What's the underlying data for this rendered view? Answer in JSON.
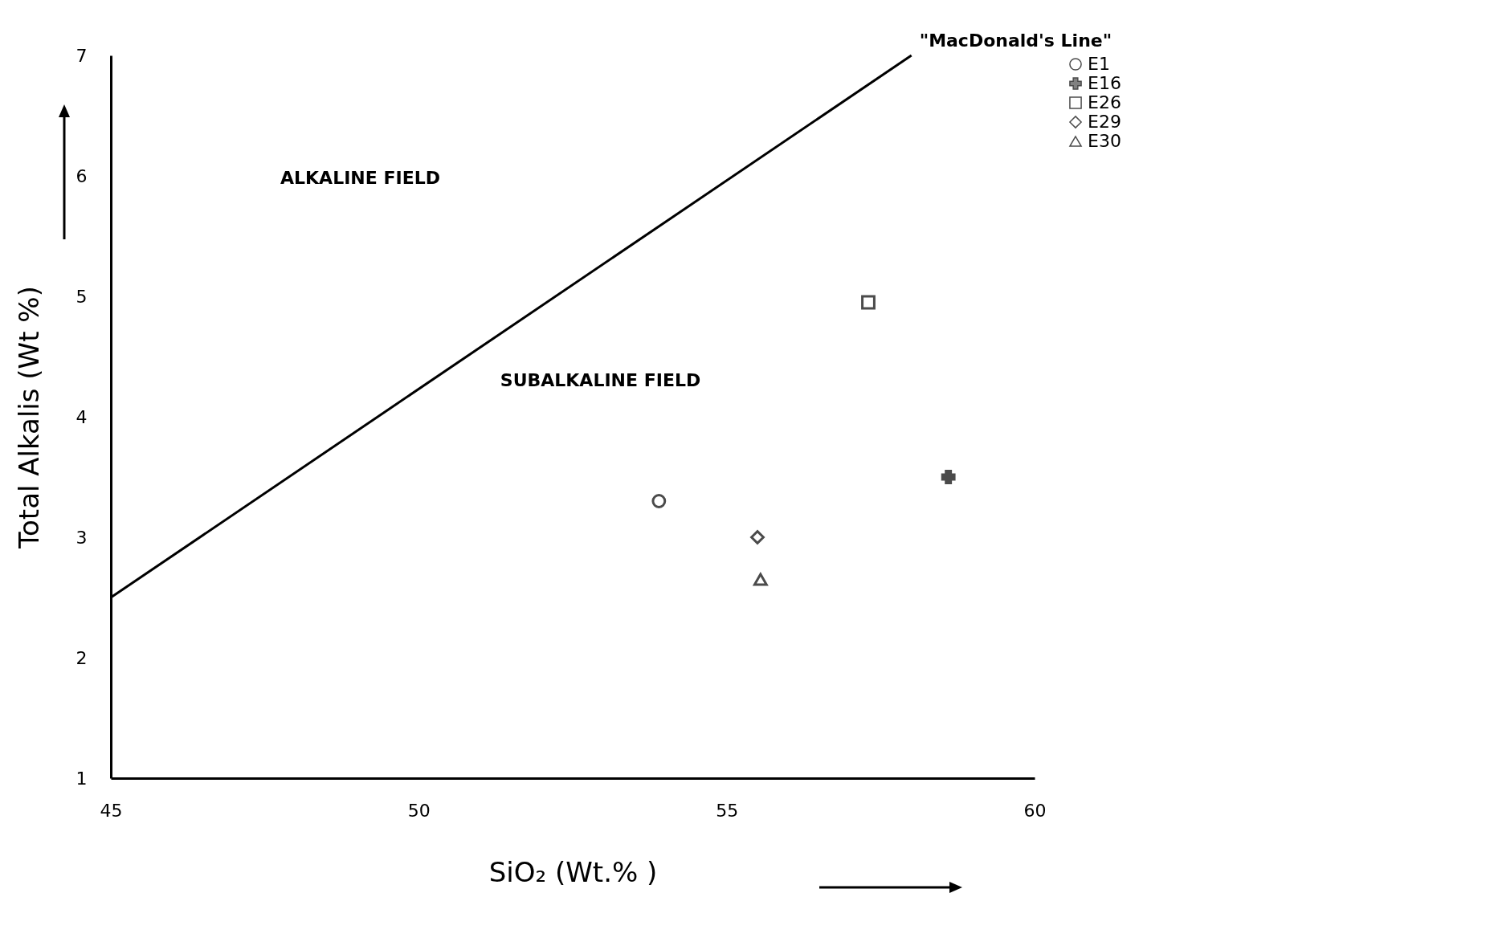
{
  "chart_data": {
    "type": "scatter",
    "xlabel": "SiO₂ (Wt.% )",
    "ylabel": "Total Alkalis (Wt %)",
    "xlim": [
      45,
      60
    ],
    "xticks": [
      45,
      50,
      55,
      60
    ],
    "ylim": [
      1,
      7
    ],
    "yticks": [
      1,
      2,
      3,
      4,
      5,
      6,
      7
    ],
    "grid": false,
    "legend": "top right",
    "series": [
      {
        "name": "\"MacDonald's Line\"",
        "type": "line",
        "color": "#000000",
        "x": [
          45,
          58
        ],
        "values": [
          2.5,
          7.0
        ]
      },
      {
        "name": "E1",
        "color": "#000000",
        "x": [
          53.9
        ],
        "values": [
          3.3
        ],
        "marker": "circle"
      },
      {
        "name": "E16",
        "color": "#000000",
        "x": [
          58.6
        ],
        "values": [
          3.5
        ],
        "marker": "cross"
      },
      {
        "name": "E26",
        "color": "#000000",
        "x": [
          57.3
        ],
        "values": [
          4.95
        ],
        "marker": "square"
      },
      {
        "name": "E29",
        "color": "#000000",
        "x": [
          55.5
        ],
        "values": [
          3.0
        ],
        "marker": "diamond"
      },
      {
        "name": "E30",
        "color": "#000000",
        "x": [
          55.55
        ],
        "values": [
          2.65
        ],
        "marker": "triangle"
      }
    ],
    "annotations": [
      "ALKALINE FIELD",
      "SUBALKALINE FIELD"
    ]
  }
}
